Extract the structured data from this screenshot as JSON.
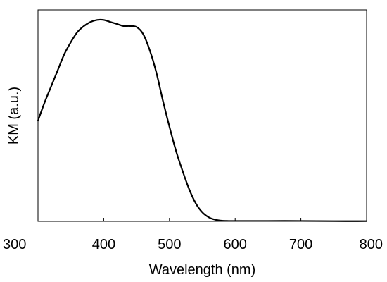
{
  "chart_data": {
    "type": "line",
    "title": "",
    "xlabel": "Wavelength (nm)",
    "ylabel": "KM (a.u.)",
    "xlim": [
      300,
      800
    ],
    "ylim": [
      0,
      1.05
    ],
    "x_ticks": [
      300,
      400,
      500,
      600,
      700,
      800
    ],
    "x_tick_labels": [
      "300",
      "400",
      "500",
      "600",
      "700",
      "800"
    ],
    "y_ticks": [],
    "grid": false,
    "legend": "none",
    "line_color": "#000000",
    "series": [
      {
        "x": [
          300,
          310,
          320,
          330,
          340,
          350,
          360,
          370,
          380,
          390,
          400,
          410,
          420,
          430,
          440,
          450,
          460,
          470,
          480,
          490,
          500,
          510,
          520,
          530,
          540,
          550,
          560,
          570,
          580,
          590,
          600,
          650,
          700,
          750,
          800
        ],
        "values": [
          0.5,
          0.59,
          0.67,
          0.75,
          0.83,
          0.89,
          0.94,
          0.97,
          0.99,
          1.0,
          1.0,
          0.99,
          0.98,
          0.97,
          0.97,
          0.965,
          0.93,
          0.85,
          0.74,
          0.6,
          0.47,
          0.35,
          0.25,
          0.16,
          0.09,
          0.045,
          0.02,
          0.008,
          0.003,
          0.002,
          0.002,
          0.002,
          0.002,
          0.001,
          0.001
        ]
      }
    ]
  }
}
